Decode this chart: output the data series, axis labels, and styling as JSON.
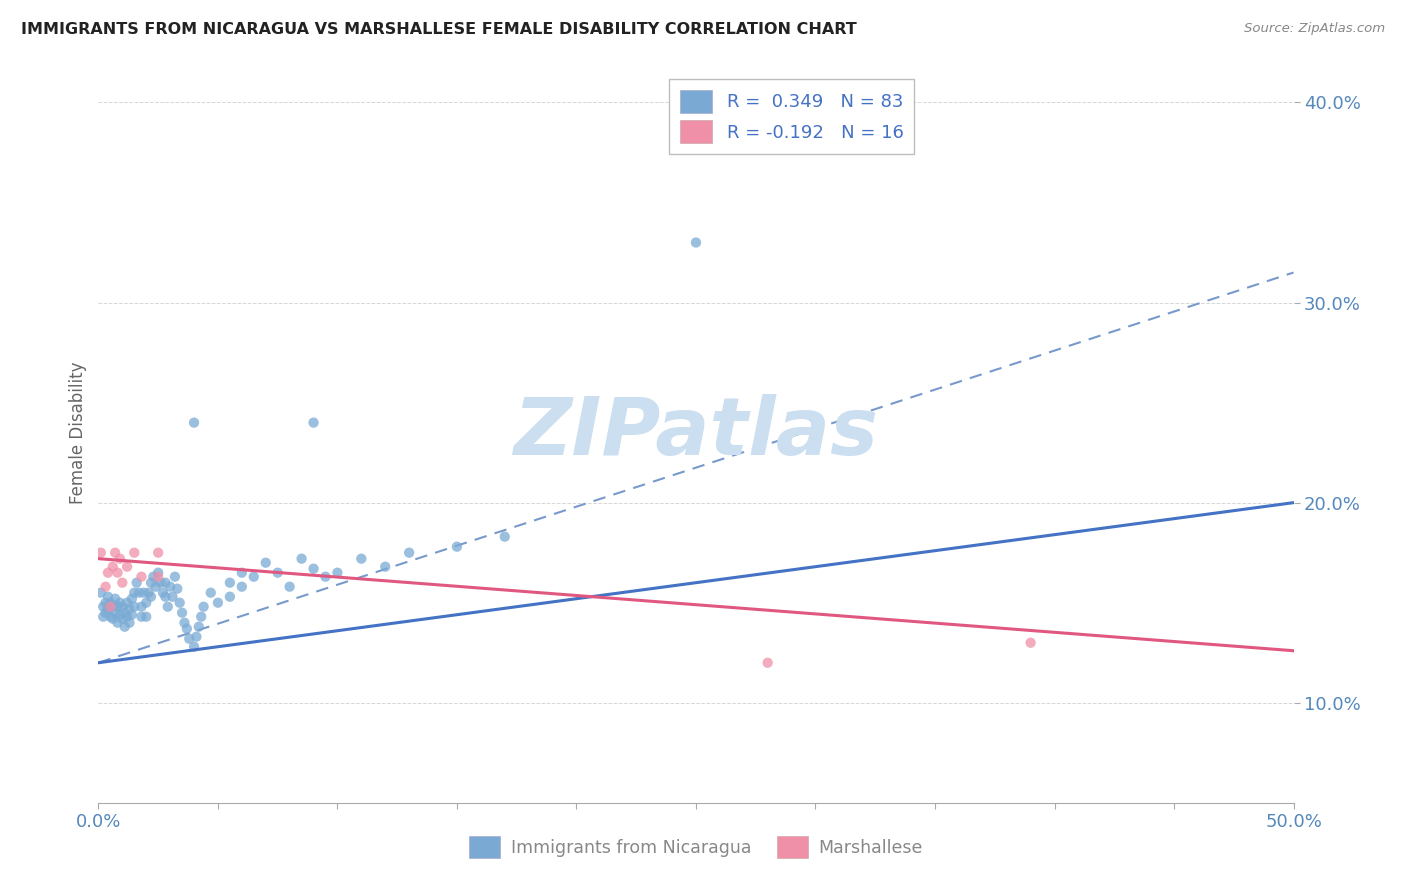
{
  "title": "IMMIGRANTS FROM NICARAGUA VS MARSHALLESE FEMALE DISABILITY CORRELATION CHART",
  "source": "Source: ZipAtlas.com",
  "ylabel": "Female Disability",
  "xlim": [
    0.0,
    0.5
  ],
  "ylim": [
    0.05,
    0.42
  ],
  "yticks": [
    0.1,
    0.2,
    0.3,
    0.4
  ],
  "ytick_labels": [
    "10.0%",
    "20.0%",
    "30.0%",
    "40.0%"
  ],
  "xticks": [
    0.0,
    0.05,
    0.1,
    0.15,
    0.2,
    0.25,
    0.3,
    0.35,
    0.4,
    0.45,
    0.5
  ],
  "xtick_labels": [
    "0.0%",
    "",
    "",
    "",
    "",
    "",
    "",
    "",
    "",
    "",
    "50.0%"
  ],
  "legend_entries": [
    {
      "label": "R =  0.349   N = 83",
      "color": "#a8c4e0"
    },
    {
      "label": "R = -0.192   N = 16",
      "color": "#f4a0b0"
    }
  ],
  "scatter_nicaragua": [
    [
      0.001,
      0.155
    ],
    [
      0.002,
      0.148
    ],
    [
      0.002,
      0.143
    ],
    [
      0.003,
      0.15
    ],
    [
      0.003,
      0.145
    ],
    [
      0.004,
      0.153
    ],
    [
      0.004,
      0.147
    ],
    [
      0.005,
      0.15
    ],
    [
      0.005,
      0.143
    ],
    [
      0.006,
      0.148
    ],
    [
      0.006,
      0.142
    ],
    [
      0.007,
      0.152
    ],
    [
      0.007,
      0.145
    ],
    [
      0.008,
      0.148
    ],
    [
      0.008,
      0.14
    ],
    [
      0.009,
      0.15
    ],
    [
      0.009,
      0.144
    ],
    [
      0.01,
      0.148
    ],
    [
      0.01,
      0.142
    ],
    [
      0.011,
      0.145
    ],
    [
      0.011,
      0.138
    ],
    [
      0.012,
      0.15
    ],
    [
      0.012,
      0.143
    ],
    [
      0.013,
      0.147
    ],
    [
      0.013,
      0.14
    ],
    [
      0.014,
      0.152
    ],
    [
      0.014,
      0.144
    ],
    [
      0.015,
      0.148
    ],
    [
      0.015,
      0.155
    ],
    [
      0.016,
      0.16
    ],
    [
      0.017,
      0.155
    ],
    [
      0.018,
      0.148
    ],
    [
      0.018,
      0.143
    ],
    [
      0.019,
      0.155
    ],
    [
      0.02,
      0.15
    ],
    [
      0.02,
      0.143
    ],
    [
      0.021,
      0.155
    ],
    [
      0.022,
      0.16
    ],
    [
      0.022,
      0.153
    ],
    [
      0.023,
      0.163
    ],
    [
      0.024,
      0.158
    ],
    [
      0.025,
      0.165
    ],
    [
      0.026,
      0.16
    ],
    [
      0.027,
      0.155
    ],
    [
      0.028,
      0.16
    ],
    [
      0.028,
      0.153
    ],
    [
      0.029,
      0.148
    ],
    [
      0.03,
      0.158
    ],
    [
      0.031,
      0.153
    ],
    [
      0.032,
      0.163
    ],
    [
      0.033,
      0.157
    ],
    [
      0.034,
      0.15
    ],
    [
      0.035,
      0.145
    ],
    [
      0.036,
      0.14
    ],
    [
      0.037,
      0.137
    ],
    [
      0.038,
      0.132
    ],
    [
      0.04,
      0.128
    ],
    [
      0.041,
      0.133
    ],
    [
      0.042,
      0.138
    ],
    [
      0.043,
      0.143
    ],
    [
      0.044,
      0.148
    ],
    [
      0.047,
      0.155
    ],
    [
      0.05,
      0.15
    ],
    [
      0.055,
      0.16
    ],
    [
      0.055,
      0.153
    ],
    [
      0.06,
      0.165
    ],
    [
      0.06,
      0.158
    ],
    [
      0.065,
      0.163
    ],
    [
      0.07,
      0.17
    ],
    [
      0.075,
      0.165
    ],
    [
      0.08,
      0.158
    ],
    [
      0.085,
      0.172
    ],
    [
      0.09,
      0.167
    ],
    [
      0.095,
      0.163
    ],
    [
      0.1,
      0.165
    ],
    [
      0.11,
      0.172
    ],
    [
      0.12,
      0.168
    ],
    [
      0.13,
      0.175
    ],
    [
      0.15,
      0.178
    ],
    [
      0.17,
      0.183
    ],
    [
      0.25,
      0.33
    ],
    [
      0.09,
      0.24
    ],
    [
      0.04,
      0.24
    ]
  ],
  "scatter_marshallese": [
    [
      0.001,
      0.175
    ],
    [
      0.003,
      0.158
    ],
    [
      0.004,
      0.165
    ],
    [
      0.005,
      0.148
    ],
    [
      0.006,
      0.168
    ],
    [
      0.007,
      0.175
    ],
    [
      0.008,
      0.165
    ],
    [
      0.009,
      0.172
    ],
    [
      0.01,
      0.16
    ],
    [
      0.012,
      0.168
    ],
    [
      0.015,
      0.175
    ],
    [
      0.018,
      0.163
    ],
    [
      0.025,
      0.175
    ],
    [
      0.025,
      0.163
    ],
    [
      0.39,
      0.13
    ],
    [
      0.28,
      0.12
    ]
  ],
  "trendline_nicaragua": {
    "x_start": 0.0,
    "x_end": 0.5,
    "y_start": 0.12,
    "y_end": 0.2,
    "color": "#4472c4",
    "lw": 2.2
  },
  "trendline_marshallese": {
    "x_start": 0.0,
    "x_end": 0.5,
    "y_start": 0.172,
    "y_end": 0.126,
    "color": "#e05880",
    "lw": 2.2
  },
  "extrap_line": {
    "x_start": 0.0,
    "x_end": 0.5,
    "y_start": 0.12,
    "y_end": 0.315,
    "color": "#7799cc",
    "lw": 1.5
  },
  "watermark": "ZIPatlas",
  "watermark_color": "#ccdff0",
  "background_color": "#ffffff",
  "grid_color": "#cccccc",
  "title_color": "#222222",
  "axis_label_color": "#5588bb",
  "tick_label_color": "#5588bb",
  "scatter_nicaragua_color": "#7aaad4",
  "scatter_marshallese_color": "#f090a8",
  "scatter_alpha": 0.75,
  "scatter_size": 55
}
